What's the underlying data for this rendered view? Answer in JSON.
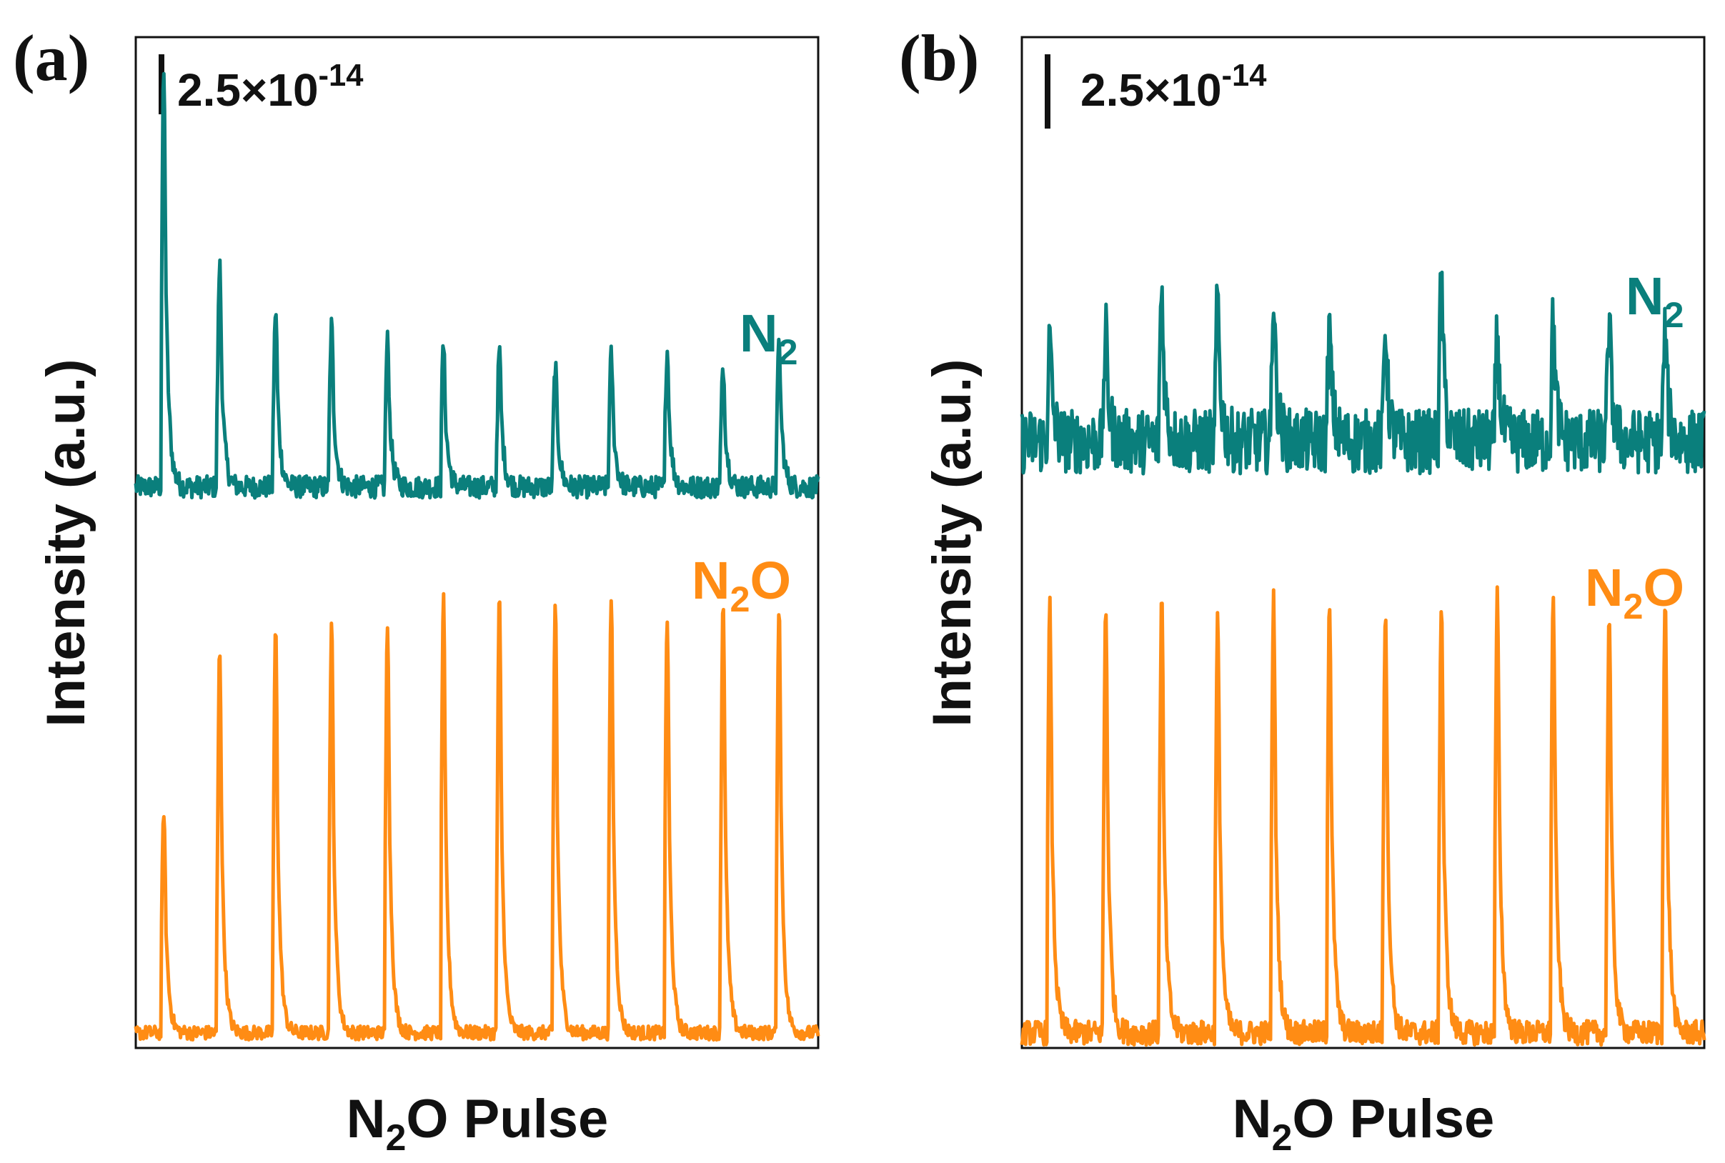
{
  "chart_data": [
    {
      "panel": "(a)",
      "type": "line",
      "xlabel_parts": [
        "N",
        "2",
        "O Pulse"
      ],
      "ylabel": "Intensity (a.u.)",
      "scale_bar": {
        "mantissa": "2.5×10",
        "exponent": "-14"
      },
      "x_range": [
        0,
        12.2
      ],
      "y_range": [
        0,
        10
      ],
      "series": [
        {
          "name_parts": [
            "N",
            "2",
            ""
          ],
          "color": "#0a7f7c",
          "baseline": 5.55,
          "noise": 0.11,
          "pulse_positions": [
            0.5,
            1.5,
            2.5,
            3.5,
            4.5,
            5.5,
            6.5,
            7.5,
            8.5,
            9.5,
            10.5,
            11.5
          ],
          "pulse_heights": [
            4.1,
            2.2,
            1.75,
            1.6,
            1.45,
            1.4,
            1.35,
            1.2,
            1.3,
            1.35,
            1.2,
            1.4
          ]
        },
        {
          "name_parts": [
            "N",
            "2",
            "O"
          ],
          "color": "#ff8c14",
          "baseline": 0.15,
          "noise": 0.07,
          "pulse_positions": [
            0.5,
            1.5,
            2.5,
            3.5,
            4.5,
            5.5,
            6.5,
            7.5,
            8.5,
            9.5,
            10.5,
            11.5
          ],
          "pulse_heights": [
            2.2,
            3.8,
            4.0,
            4.05,
            4.05,
            4.3,
            4.3,
            4.25,
            4.3,
            4.1,
            4.3,
            4.25
          ]
        }
      ]
    },
    {
      "panel": "(b)",
      "type": "line",
      "xlabel_parts": [
        "N",
        "2",
        "O Pulse"
      ],
      "ylabel": "Intensity (a.u.)",
      "scale_bar": {
        "mantissa": "2.5×10",
        "exponent": "-14"
      },
      "x_range": [
        0,
        12.2
      ],
      "y_range": [
        0,
        10
      ],
      "series": [
        {
          "name_parts": [
            "N",
            "2",
            ""
          ],
          "color": "#0a7f7c",
          "baseline": 6.0,
          "noise": 0.32,
          "pulse_positions": [
            0.5,
            1.5,
            2.5,
            3.5,
            4.5,
            5.5,
            6.5,
            7.5,
            8.5,
            9.5,
            10.5,
            11.5
          ],
          "pulse_heights": [
            1.0,
            1.05,
            1.5,
            1.4,
            1.45,
            1.1,
            1.15,
            1.6,
            1.05,
            1.2,
            1.15,
            1.05
          ]
        },
        {
          "name_parts": [
            "N",
            "2",
            "O"
          ],
          "color": "#ff8c14",
          "baseline": 0.15,
          "noise": 0.12,
          "pulse_positions": [
            0.5,
            1.5,
            2.5,
            3.5,
            4.5,
            5.5,
            6.5,
            7.5,
            8.5,
            9.5,
            10.5,
            11.5
          ],
          "pulse_heights": [
            4.2,
            4.2,
            4.3,
            4.1,
            4.3,
            4.3,
            4.2,
            4.25,
            4.3,
            4.3,
            4.15,
            4.25
          ]
        }
      ]
    }
  ]
}
